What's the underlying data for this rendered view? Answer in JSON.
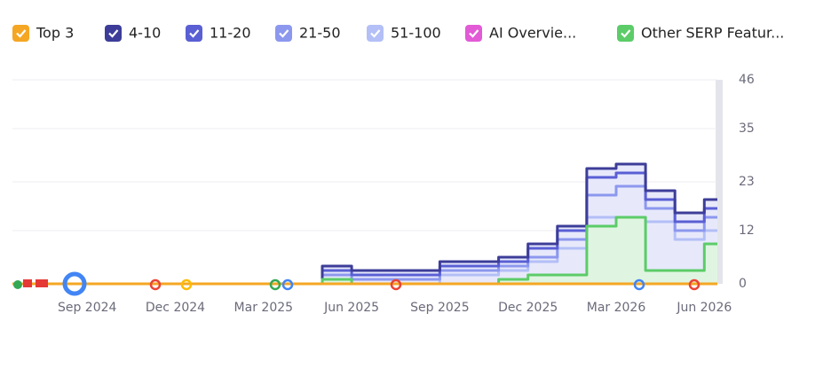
{
  "chart_data": {
    "type": "line",
    "categories": [
      null,
      null,
      "Sep 2024",
      null,
      null,
      "Dec 2024",
      null,
      null,
      "Mar 2025",
      null,
      null,
      "Jun 2025",
      null,
      null,
      "Sep 2025",
      null,
      null,
      "Dec 2025",
      null,
      null,
      "Mar 2026",
      null,
      null,
      "Jun 2026"
    ],
    "series": [
      {
        "name": "Top 3",
        "color": "#f5a623",
        "values": [
          0,
          0,
          0,
          0,
          0,
          0,
          0,
          0,
          0,
          0,
          0,
          0,
          0,
          0,
          0,
          0,
          0,
          0,
          0,
          0,
          0,
          0,
          0,
          0
        ]
      },
      {
        "name": "4-10",
        "color": "#3d3d99",
        "values": [
          0,
          0,
          0,
          0,
          0,
          0,
          0,
          0,
          0,
          0,
          4,
          3,
          3,
          3,
          5,
          5,
          6,
          9,
          13,
          26,
          27,
          21,
          16,
          19
        ]
      },
      {
        "name": "11-20",
        "color": "#5a5fd4",
        "values": [
          0,
          0,
          0,
          0,
          0,
          0,
          0,
          0,
          0,
          0,
          3,
          2,
          2,
          2,
          4,
          4,
          5,
          8,
          12,
          24,
          25,
          19,
          14,
          17
        ]
      },
      {
        "name": "21-50",
        "color": "#8c98ee",
        "values": [
          0,
          0,
          0,
          0,
          0,
          0,
          0,
          0,
          0,
          0,
          2,
          1,
          1,
          1,
          3,
          3,
          4,
          6,
          10,
          20,
          22,
          17,
          12,
          15
        ]
      },
      {
        "name": "51-100",
        "color": "#b3bff6",
        "values": [
          0,
          0,
          0,
          0,
          0,
          0,
          0,
          0,
          0,
          0,
          1,
          0,
          0,
          0,
          2,
          2,
          3,
          5,
          8,
          15,
          15,
          14,
          10,
          12
        ]
      },
      {
        "name": "AI Overvie...",
        "color": "#e25ad6",
        "values": [
          0,
          0,
          0,
          0,
          0,
          0,
          0,
          0,
          0,
          0,
          0,
          0,
          0,
          0,
          0,
          0,
          0,
          0,
          0,
          0,
          0,
          0,
          0,
          0
        ]
      },
      {
        "name": "Other SERP Featur...",
        "color": "#5ccc68",
        "values": [
          0,
          0,
          0,
          0,
          0,
          0,
          0,
          0,
          0,
          0,
          1,
          0,
          0,
          0,
          0,
          0,
          1,
          2,
          2,
          13,
          15,
          3,
          3,
          9
        ]
      }
    ],
    "ylim": [
      0,
      46
    ],
    "yticks": [
      0,
      12,
      23,
      35,
      46
    ],
    "grid": true
  }
}
